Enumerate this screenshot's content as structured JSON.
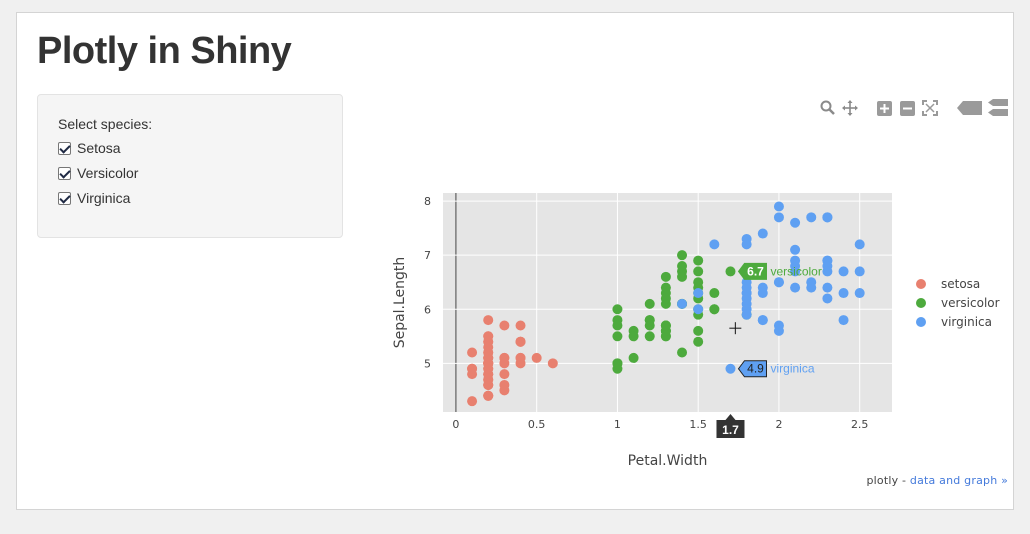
{
  "page": {
    "title": "Plotly in Shiny"
  },
  "filter": {
    "label": "Select species:",
    "options": [
      {
        "label": "Setosa",
        "checked": true
      },
      {
        "label": "Versicolor",
        "checked": true
      },
      {
        "label": "Virginica",
        "checked": true
      }
    ]
  },
  "modebar": {
    "icons": [
      "zoom-icon",
      "pan-icon",
      "zoom-in-icon",
      "zoom-out-icon",
      "autoscale-icon",
      "hover-closest-icon",
      "hover-compare-icon"
    ]
  },
  "footer": {
    "prefix": "plotly - ",
    "link": "data and graph »"
  },
  "colors": {
    "setosa": "#e8806f",
    "versicolor": "#4daa3d",
    "virginica": "#5fa0f2",
    "plot_bg": "#e5e5e5"
  },
  "chart_data": {
    "type": "scatter",
    "xlabel": "Petal.Width",
    "ylabel": "Sepal.Length",
    "xlim": [
      -0.08,
      2.7
    ],
    "ylim": [
      4.1,
      8.15
    ],
    "xticks": [
      0,
      0.5,
      1,
      1.5,
      2,
      2.5
    ],
    "yticks": [
      5,
      6,
      7,
      8
    ],
    "xtick_labels": [
      "0",
      "0.5",
      "1",
      "1.5",
      "2",
      "2.5"
    ],
    "ytick_labels": [
      "5",
      "6",
      "7",
      "8"
    ],
    "grid": true,
    "legend_position": "right",
    "series": [
      {
        "name": "setosa",
        "color": "#e8806f",
        "points": [
          [
            0.2,
            5.1
          ],
          [
            0.2,
            4.9
          ],
          [
            0.2,
            4.7
          ],
          [
            0.2,
            4.6
          ],
          [
            0.2,
            5.0
          ],
          [
            0.4,
            5.4
          ],
          [
            0.3,
            4.6
          ],
          [
            0.2,
            5.0
          ],
          [
            0.2,
            4.4
          ],
          [
            0.1,
            4.9
          ],
          [
            0.2,
            5.4
          ],
          [
            0.2,
            4.8
          ],
          [
            0.1,
            4.8
          ],
          [
            0.1,
            4.3
          ],
          [
            0.2,
            5.8
          ],
          [
            0.4,
            5.7
          ],
          [
            0.4,
            5.4
          ],
          [
            0.3,
            5.1
          ],
          [
            0.3,
            5.7
          ],
          [
            0.3,
            5.1
          ],
          [
            0.2,
            5.4
          ],
          [
            0.4,
            5.1
          ],
          [
            0.2,
            4.6
          ],
          [
            0.5,
            5.1
          ],
          [
            0.2,
            4.8
          ],
          [
            0.2,
            5.0
          ],
          [
            0.4,
            5.0
          ],
          [
            0.2,
            5.2
          ],
          [
            0.2,
            5.2
          ],
          [
            0.2,
            4.7
          ],
          [
            0.2,
            4.8
          ],
          [
            0.4,
            5.4
          ],
          [
            0.1,
            5.2
          ],
          [
            0.2,
            5.5
          ],
          [
            0.2,
            4.9
          ],
          [
            0.2,
            5.0
          ],
          [
            0.2,
            5.5
          ],
          [
            0.1,
            4.9
          ],
          [
            0.2,
            4.4
          ],
          [
            0.2,
            5.1
          ],
          [
            0.3,
            5.0
          ],
          [
            0.3,
            4.5
          ],
          [
            0.2,
            4.4
          ],
          [
            0.6,
            5.0
          ],
          [
            0.4,
            5.1
          ],
          [
            0.3,
            4.8
          ],
          [
            0.2,
            5.1
          ],
          [
            0.2,
            4.6
          ],
          [
            0.2,
            5.3
          ],
          [
            0.2,
            5.0
          ]
        ]
      },
      {
        "name": "versicolor",
        "color": "#4daa3d",
        "points": [
          [
            1.4,
            7.0
          ],
          [
            1.5,
            6.4
          ],
          [
            1.5,
            6.9
          ],
          [
            1.3,
            5.5
          ],
          [
            1.5,
            6.5
          ],
          [
            1.3,
            5.7
          ],
          [
            1.6,
            6.3
          ],
          [
            1.0,
            4.9
          ],
          [
            1.3,
            6.6
          ],
          [
            1.4,
            5.2
          ],
          [
            1.0,
            5.0
          ],
          [
            1.5,
            5.9
          ],
          [
            1.0,
            6.0
          ],
          [
            1.4,
            6.1
          ],
          [
            1.3,
            5.6
          ],
          [
            1.4,
            6.7
          ],
          [
            1.5,
            5.6
          ],
          [
            1.0,
            5.8
          ],
          [
            1.5,
            6.2
          ],
          [
            1.1,
            5.6
          ],
          [
            1.8,
            5.9
          ],
          [
            1.3,
            6.1
          ],
          [
            1.5,
            6.3
          ],
          [
            1.2,
            6.1
          ],
          [
            1.3,
            6.4
          ],
          [
            1.4,
            6.6
          ],
          [
            1.4,
            6.8
          ],
          [
            1.7,
            6.7
          ],
          [
            1.5,
            6.0
          ],
          [
            1.0,
            5.7
          ],
          [
            1.1,
            5.5
          ],
          [
            1.0,
            5.5
          ],
          [
            1.2,
            5.8
          ],
          [
            1.6,
            6.0
          ],
          [
            1.5,
            5.4
          ],
          [
            1.6,
            6.0
          ],
          [
            1.5,
            6.7
          ],
          [
            1.3,
            6.3
          ],
          [
            1.3,
            5.6
          ],
          [
            1.3,
            5.5
          ],
          [
            1.2,
            5.5
          ],
          [
            1.4,
            6.1
          ],
          [
            1.2,
            5.8
          ],
          [
            1.0,
            5.0
          ],
          [
            1.3,
            5.6
          ],
          [
            1.2,
            5.7
          ],
          [
            1.3,
            5.7
          ],
          [
            1.3,
            6.2
          ],
          [
            1.1,
            5.1
          ],
          [
            1.3,
            5.7
          ]
        ]
      },
      {
        "name": "virginica",
        "color": "#5fa0f2",
        "points": [
          [
            2.5,
            6.3
          ],
          [
            1.9,
            5.8
          ],
          [
            2.1,
            7.1
          ],
          [
            1.8,
            6.3
          ],
          [
            2.2,
            6.5
          ],
          [
            2.1,
            7.6
          ],
          [
            1.7,
            4.9
          ],
          [
            1.8,
            7.3
          ],
          [
            1.8,
            6.7
          ],
          [
            2.5,
            7.2
          ],
          [
            2.0,
            6.5
          ],
          [
            1.9,
            6.4
          ],
          [
            2.1,
            6.8
          ],
          [
            2.0,
            5.7
          ],
          [
            2.4,
            5.8
          ],
          [
            2.3,
            6.4
          ],
          [
            1.8,
            6.5
          ],
          [
            2.2,
            7.7
          ],
          [
            2.3,
            7.7
          ],
          [
            1.5,
            6.0
          ],
          [
            2.3,
            6.9
          ],
          [
            2.0,
            5.6
          ],
          [
            2.0,
            7.7
          ],
          [
            1.8,
            6.3
          ],
          [
            2.1,
            6.7
          ],
          [
            1.8,
            7.2
          ],
          [
            1.8,
            6.2
          ],
          [
            1.8,
            6.1
          ],
          [
            2.1,
            6.4
          ],
          [
            1.6,
            7.2
          ],
          [
            1.9,
            7.4
          ],
          [
            2.0,
            7.9
          ],
          [
            2.2,
            6.4
          ],
          [
            1.5,
            6.3
          ],
          [
            1.4,
            6.1
          ],
          [
            2.3,
            7.7
          ],
          [
            2.4,
            6.3
          ],
          [
            1.8,
            6.4
          ],
          [
            1.8,
            6.0
          ],
          [
            2.1,
            6.9
          ],
          [
            2.4,
            6.7
          ],
          [
            2.3,
            6.9
          ],
          [
            1.9,
            5.8
          ],
          [
            2.3,
            6.8
          ],
          [
            2.5,
            6.7
          ],
          [
            2.3,
            6.7
          ],
          [
            1.9,
            6.3
          ],
          [
            2.0,
            6.5
          ],
          [
            2.3,
            6.2
          ],
          [
            1.8,
            5.9
          ]
        ]
      }
    ],
    "hover": {
      "x_label": "1.7",
      "labels": [
        {
          "series": "versicolor",
          "x": 1.7,
          "y": 6.7,
          "value": "6.7",
          "name": "versicolor"
        },
        {
          "series": "virginica",
          "x": 1.7,
          "y": 4.9,
          "value": "4.9",
          "name": "virginica"
        }
      ],
      "cursor": {
        "x": 1.73,
        "y": 5.65
      }
    }
  }
}
